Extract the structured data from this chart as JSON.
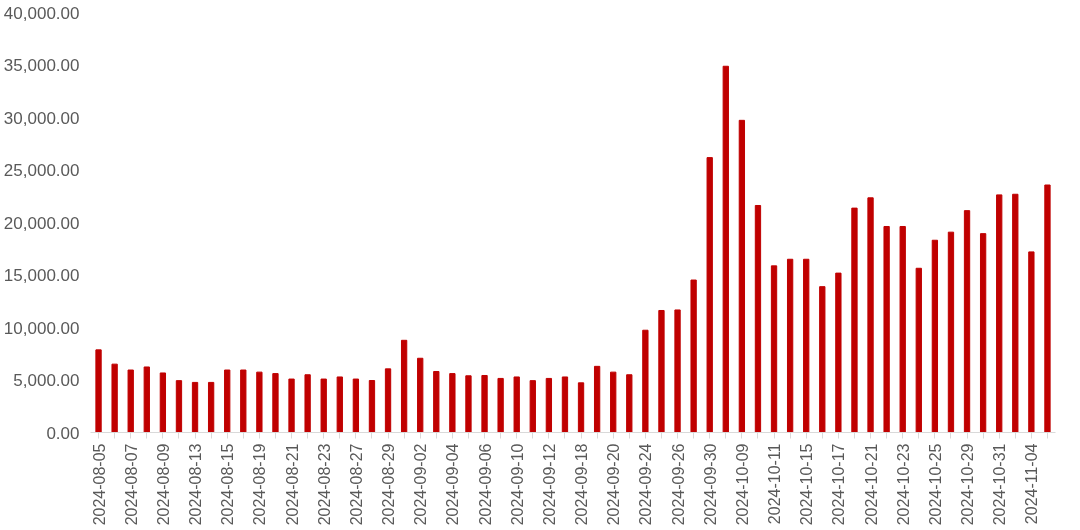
{
  "chart_data": {
    "type": "bar",
    "categories": [
      "2024-08-05",
      null,
      "2024-08-07",
      null,
      "2024-08-09",
      null,
      "2024-08-13",
      null,
      "2024-08-15",
      null,
      "2024-08-19",
      null,
      "2024-08-21",
      null,
      "2024-08-23",
      null,
      "2024-08-27",
      null,
      "2024-08-29",
      null,
      "2024-09-02",
      null,
      "2024-09-04",
      null,
      "2024-09-06",
      null,
      "2024-09-10",
      null,
      "2024-09-12",
      null,
      "2024-09-18",
      null,
      "2024-09-20",
      null,
      "2024-09-24",
      null,
      "2024-09-26",
      null,
      "2024-09-30",
      null,
      "2024-10-09",
      null,
      "2024-10-11",
      null,
      "2024-10-15",
      null,
      "2024-10-17",
      null,
      "2024-10-21",
      null,
      "2024-10-23",
      null,
      "2024-10-25",
      null,
      "2024-10-29",
      null,
      "2024-10-31",
      null,
      "2024-11-04",
      null
    ],
    "values": [
      7870,
      6510,
      5950,
      6240,
      5670,
      4940,
      4770,
      4770,
      5950,
      5950,
      5750,
      5610,
      5090,
      5500,
      5090,
      5290,
      5090,
      4950,
      6060,
      8780,
      7070,
      5810,
      5610,
      5400,
      5430,
      5150,
      5290,
      4940,
      5150,
      5290,
      4730,
      6300,
      5750,
      5500,
      9740,
      11620,
      11670,
      14520,
      26180,
      34880,
      29730,
      21620,
      15870,
      16500,
      16500,
      13890,
      15180,
      21370,
      22350,
      19620,
      19620,
      15640,
      18310,
      19080,
      21130,
      18940,
      22630,
      22690,
      17200,
      23570
    ],
    "color": "#c00000",
    "ylim": [
      0,
      40000
    ],
    "yticks": [
      {
        "value": 0,
        "label": "0.00"
      },
      {
        "value": 5000,
        "label": "5,000.00"
      },
      {
        "value": 10000,
        "label": "10,000.00"
      },
      {
        "value": 15000,
        "label": "15,000.00"
      },
      {
        "value": 20000,
        "label": "20,000.00"
      },
      {
        "value": 25000,
        "label": "25,000.00"
      },
      {
        "value": 30000,
        "label": "30,000.00"
      },
      {
        "value": 35000,
        "label": "35,000.00"
      },
      {
        "value": 40000,
        "label": "40,000.00"
      }
    ],
    "grid": false
  }
}
